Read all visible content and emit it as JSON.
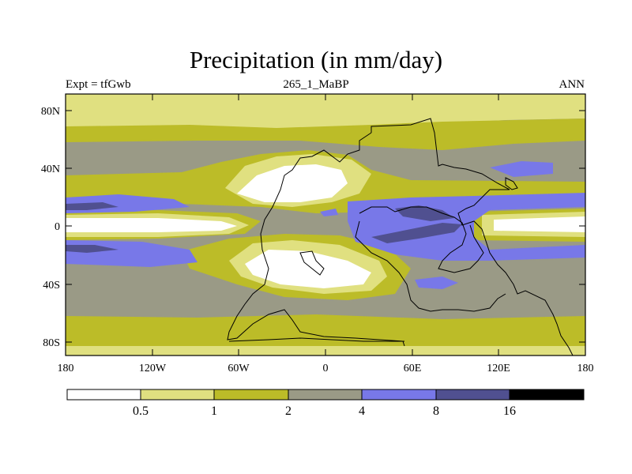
{
  "title": "Precipitation (in mm/day)",
  "subtitle_left": "Expt = tfGwb",
  "subtitle_center": "265_1_MaBP",
  "subtitle_right": "ANN",
  "y_ticks": [
    "80N",
    "40N",
    "0",
    "40S",
    "80S"
  ],
  "x_ticks": [
    "180",
    "120W",
    "60W",
    "0",
    "60E",
    "120E",
    "180"
  ],
  "legend": {
    "boundaries": [
      "0.5",
      "1",
      "2",
      "4",
      "8",
      "16"
    ],
    "colors": [
      "#ffffff",
      "#e0e080",
      "#bcbc28",
      "#9a9a86",
      "#7878e8",
      "#505090",
      "#000000"
    ]
  },
  "chart_data": {
    "type": "heatmap",
    "title": "Precipitation (in mm/day)",
    "variable": "Precipitation",
    "units": "mm/day",
    "experiment": "tfGwb",
    "period": "265_1_MaBP",
    "season": "ANN",
    "lon_range": [
      -180,
      180
    ],
    "lat_range": [
      -90,
      90
    ],
    "contour_levels": [
      0.5,
      1,
      2,
      4,
      8,
      16
    ]
  }
}
